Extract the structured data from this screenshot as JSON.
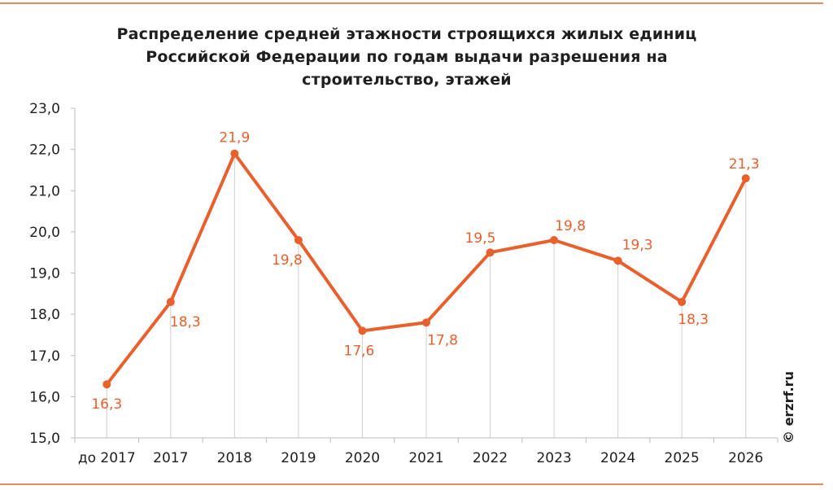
{
  "chart_data": {
    "type": "line",
    "title_lines": [
      "Распределение  средней этажности строящихся жилых единиц",
      "Российской Федерации  по годам выдачи разрешения  на",
      "строительство, этажей"
    ],
    "categories": [
      "до 2017",
      "2017",
      "2018",
      "2019",
      "2020",
      "2021",
      "2022",
      "2023",
      "2024",
      "2025",
      "2026"
    ],
    "series": [
      {
        "values": [
          16.3,
          18.3,
          21.9,
          19.8,
          17.6,
          17.8,
          19.5,
          19.8,
          19.3,
          18.3,
          21.3
        ],
        "data_labels": [
          "16,3",
          "18,3",
          "21,9",
          "19,8",
          "17,6",
          "17,8",
          "19,5",
          "19,8",
          "19,3",
          "18,3",
          "21,3"
        ],
        "color": "#e8602c"
      }
    ],
    "ylim": [
      15,
      23
    ],
    "yticks": [
      "15,0",
      "16,0",
      "17,0",
      "18,0",
      "19,0",
      "20,0",
      "21,0",
      "22,0",
      "23,0"
    ],
    "xlabel": "",
    "ylabel": "",
    "grid": "vertical drop lines",
    "legend": "none"
  },
  "copyright": "© erzrf.ru",
  "colors": {
    "accent": "#e8602c",
    "rule": "#ea8a63",
    "text": "#1f1f1f",
    "grid": "#cfcfcf"
  }
}
